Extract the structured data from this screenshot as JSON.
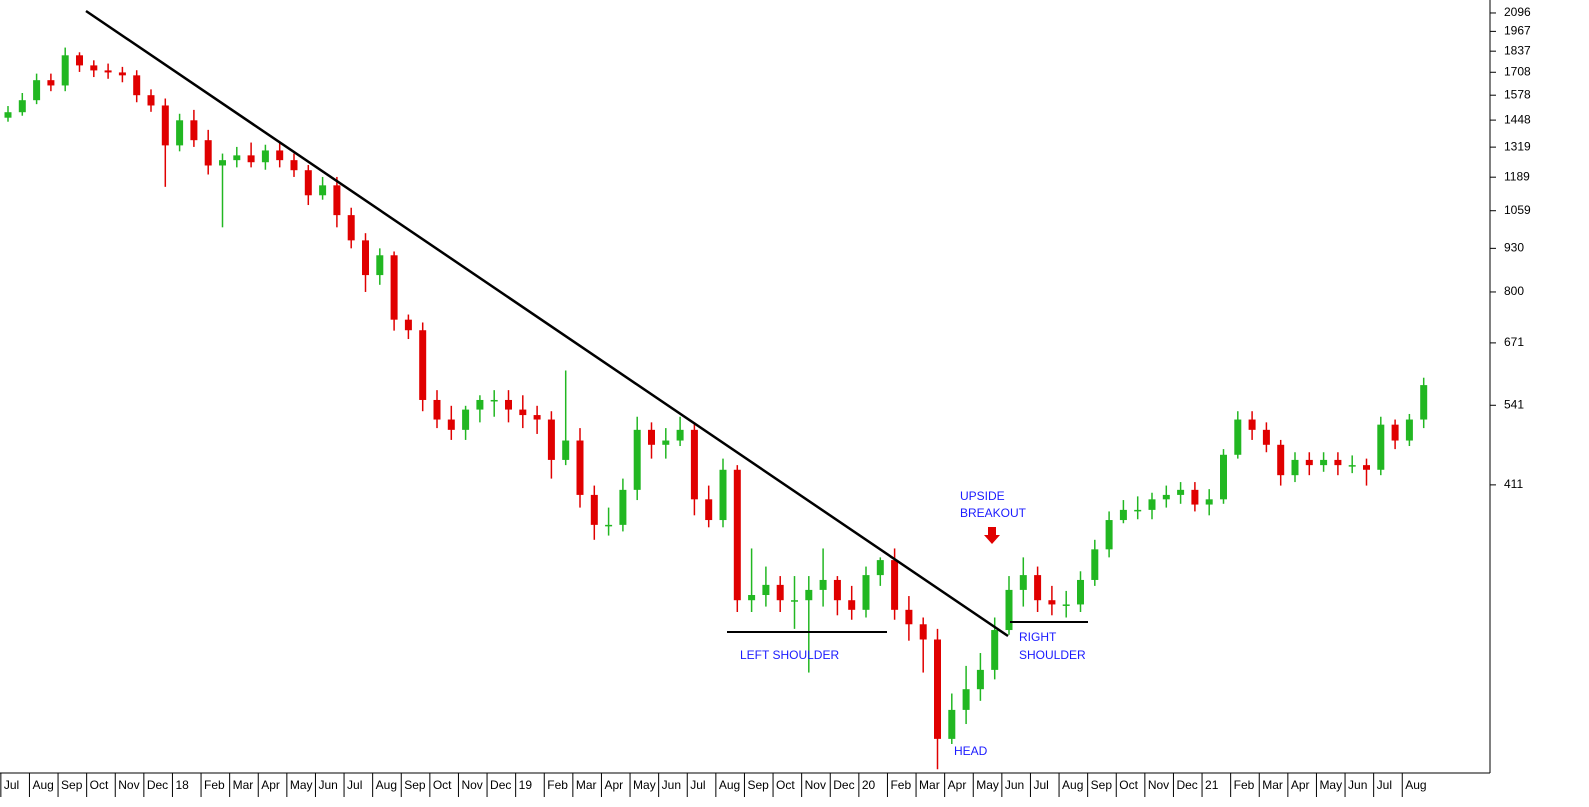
{
  "chart_data": {
    "type": "candlestick",
    "categories": [
      "Jul",
      null,
      "Aug",
      null,
      "Sep",
      null,
      "Oct",
      null,
      "Nov",
      null,
      "Dec",
      null,
      "18",
      null,
      "Feb",
      null,
      "Mar",
      null,
      "Apr",
      null,
      "May",
      null,
      "Jun",
      null,
      "Jul",
      null,
      "Aug",
      null,
      "Sep",
      null,
      "Oct",
      null,
      "Nov",
      null,
      "Dec",
      null,
      "19",
      null,
      "Feb",
      null,
      "Mar",
      null,
      "Apr",
      null,
      "May",
      null,
      "Jun",
      null,
      "Jul",
      null,
      "Aug",
      null,
      "Sep",
      null,
      "Oct",
      null,
      "Nov",
      null,
      "Dec",
      null,
      "20",
      null,
      "Feb",
      null,
      "Mar",
      null,
      "Apr",
      null,
      "May",
      null,
      "Jun",
      null,
      "Jul",
      null,
      "Aug",
      null,
      "Sep",
      null,
      "Oct",
      null,
      "Nov",
      null,
      "Dec",
      null,
      "21",
      null,
      "Feb",
      null,
      "Mar",
      null,
      "Apr",
      null,
      "May",
      null,
      "Jun",
      null,
      "Jul",
      null,
      "Aug",
      null
    ],
    "open": [
      1460,
      1488,
      1551,
      1662,
      1632,
      1811,
      1749,
      1719,
      1707,
      1690,
      1578,
      1523,
      1327,
      1447,
      1351,
      1238,
      1261,
      1282,
      1252,
      1304,
      1261,
      1218,
      1117,
      1156,
      1043,
      956,
      848,
      908,
      727,
      701,
      551,
      515,
      497,
      533,
      551,
      551,
      533,
      523,
      515,
      448,
      479,
      397,
      358,
      358,
      404,
      497,
      472,
      479,
      497,
      391,
      364,
      433,
      276,
      281,
      291,
      276,
      276,
      286,
      296,
      276,
      267,
      301,
      317,
      267,
      254,
      241,
      171,
      189,
      203,
      217,
      249,
      286,
      301,
      276,
      272,
      272,
      296,
      329,
      364,
      377,
      377,
      391,
      397,
      404,
      384,
      391,
      456,
      515,
      497,
      472,
      425,
      448,
      440,
      448,
      440,
      440,
      433,
      506,
      479,
      515
    ],
    "high": [
      1520,
      1590,
      1700,
      1700,
      1860,
      1830,
      1780,
      1760,
      1740,
      1720,
      1610,
      1560,
      1480,
      1500,
      1400,
      1290,
      1320,
      1340,
      1330,
      1340,
      1290,
      1240,
      1190,
      1190,
      1070,
      980,
      930,
      920,
      740,
      720,
      570,
      540,
      540,
      560,
      570,
      570,
      560,
      540,
      530,
      610,
      500,
      410,
      380,
      420,
      520,
      510,
      500,
      520,
      510,
      410,
      450,
      440,
      330,
      310,
      300,
      300,
      300,
      330,
      300,
      290,
      310,
      320,
      330,
      280,
      260,
      250,
      200,
      220,
      230,
      260,
      300,
      320,
      310,
      290,
      285,
      305,
      340,
      375,
      390,
      395,
      400,
      410,
      415,
      415,
      405,
      465,
      530,
      530,
      510,
      480,
      460,
      460,
      460,
      460,
      455,
      450,
      520,
      515,
      525,
      595
    ],
    "low": [
      1440,
      1470,
      1530,
      1600,
      1600,
      1710,
      1680,
      1670,
      1650,
      1540,
      1490,
      1150,
      1300,
      1320,
      1200,
      1000,
      1230,
      1230,
      1220,
      1230,
      1190,
      1080,
      1100,
      1000,
      930,
      800,
      820,
      700,
      680,
      530,
      500,
      480,
      480,
      510,
      520,
      510,
      500,
      490,
      420,
      440,
      380,
      340,
      345,
      350,
      390,
      450,
      450,
      470,
      370,
      355,
      355,
      265,
      265,
      270,
      265,
      250,
      215,
      270,
      262,
      258,
      260,
      290,
      258,
      240,
      215,
      154,
      168,
      180,
      195,
      210,
      245,
      270,
      265,
      262,
      260,
      265,
      290,
      320,
      360,
      365,
      365,
      380,
      385,
      375,
      370,
      385,
      450,
      480,
      460,
      410,
      415,
      425,
      430,
      425,
      428,
      410,
      425,
      465,
      470,
      500
    ],
    "close": [
      1488,
      1551,
      1662,
      1632,
      1811,
      1749,
      1719,
      1707,
      1690,
      1578,
      1523,
      1327,
      1447,
      1351,
      1238,
      1261,
      1282,
      1252,
      1304,
      1261,
      1218,
      1117,
      1156,
      1043,
      956,
      848,
      908,
      727,
      701,
      551,
      515,
      497,
      533,
      551,
      551,
      533,
      523,
      515,
      448,
      479,
      397,
      358,
      358,
      404,
      497,
      472,
      479,
      497,
      391,
      364,
      433,
      276,
      281,
      291,
      276,
      276,
      286,
      296,
      276,
      267,
      301,
      317,
      267,
      254,
      241,
      171,
      189,
      203,
      217,
      249,
      286,
      301,
      276,
      272,
      272,
      296,
      329,
      364,
      377,
      377,
      391,
      397,
      404,
      384,
      391,
      456,
      515,
      497,
      472,
      425,
      448,
      440,
      448,
      440,
      440,
      433,
      506,
      479,
      515,
      580
    ],
    "up_color": "#22b722",
    "down_color": "#e00000",
    "ylim": [
      152,
      2192
    ],
    "yscale": "log",
    "yticks": [
      2096,
      1967,
      1837,
      1708,
      1578,
      1448,
      1319,
      1189,
      1059,
      930,
      800,
      671,
      541,
      411
    ],
    "annotations": [
      "UPSIDE",
      "BREAKOUT",
      "LEFT SHOULDER",
      "HEAD",
      "RIGHT",
      "SHOULDER"
    ]
  }
}
